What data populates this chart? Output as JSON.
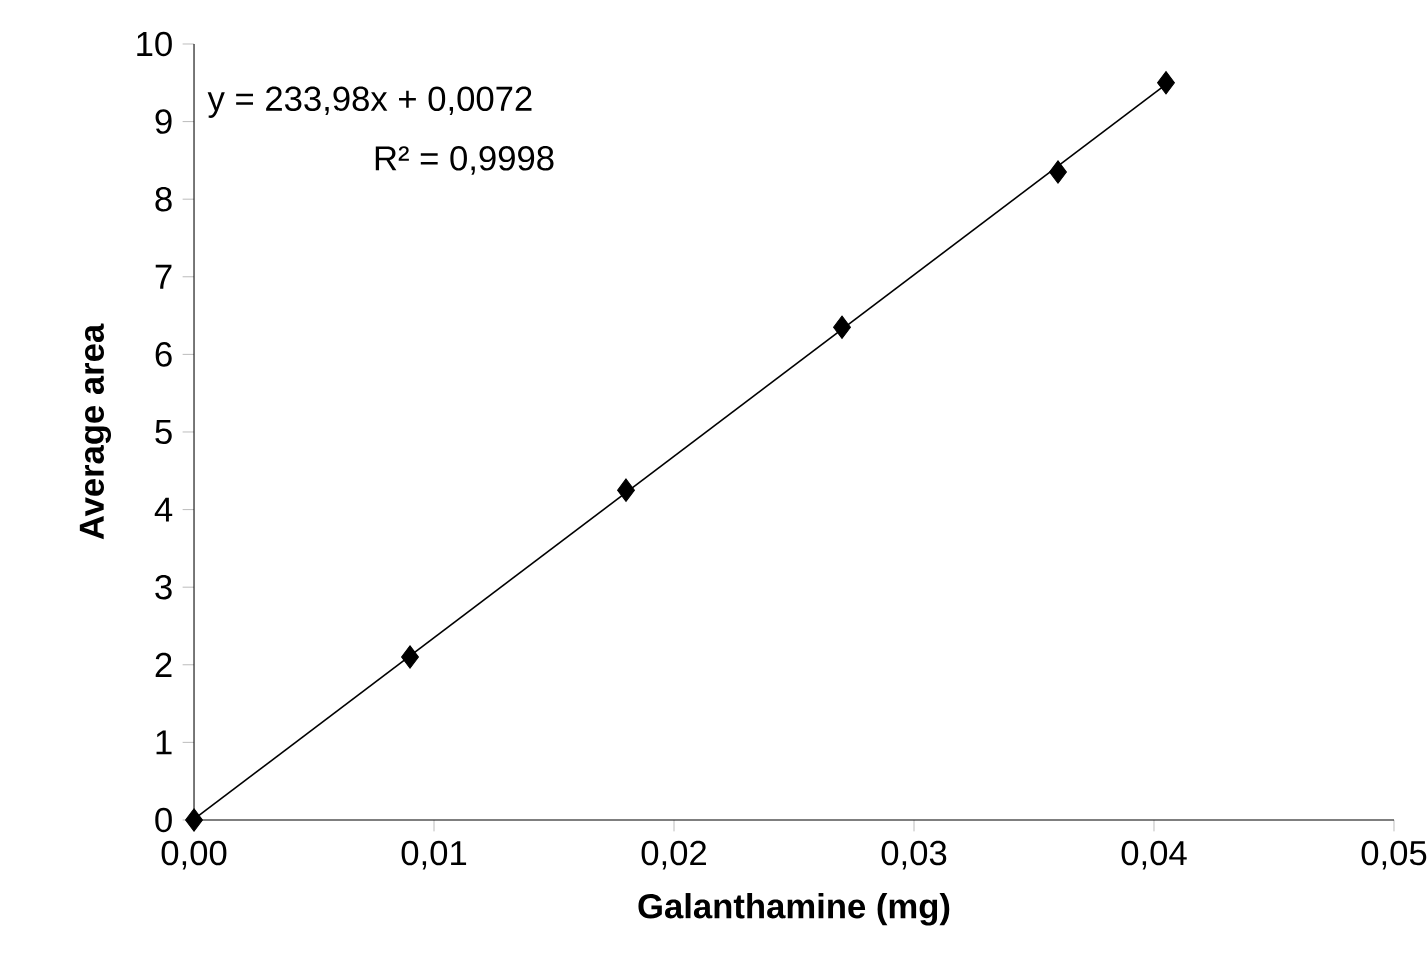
{
  "chart_data": {
    "type": "scatter",
    "xlabel": "Galanthamine (mg)",
    "ylabel": "Average area",
    "annotations": [
      "y = 233,98x + 0,0072",
      "R² = 0,9998"
    ],
    "series": [
      {
        "color": "#000000",
        "marker": "diamond",
        "x": [
          0,
          0.009,
          0.018,
          0.027,
          0.036,
          0.0405
        ],
        "values": [
          0,
          2.1,
          4.25,
          6.35,
          8.35,
          9.5
        ]
      },
      {
        "type": "line",
        "color": "#000000",
        "marker": "none",
        "x": [
          0,
          0.0405
        ],
        "values": [
          0.01,
          9.48
        ]
      }
    ],
    "xlim": [
      0,
      0.05
    ],
    "ylim": [
      0,
      10
    ],
    "xticks": [
      {
        "value": 0,
        "label": "0,00"
      },
      {
        "value": 0.01,
        "label": "0,01"
      },
      {
        "value": 0.02,
        "label": "0,02"
      },
      {
        "value": 0.03,
        "label": "0,03"
      },
      {
        "value": 0.04,
        "label": "0,04"
      },
      {
        "value": 0.05,
        "label": "0,05"
      }
    ],
    "yticks": [
      0,
      1,
      2,
      3,
      4,
      5,
      6,
      7,
      8,
      9,
      10
    ]
  }
}
